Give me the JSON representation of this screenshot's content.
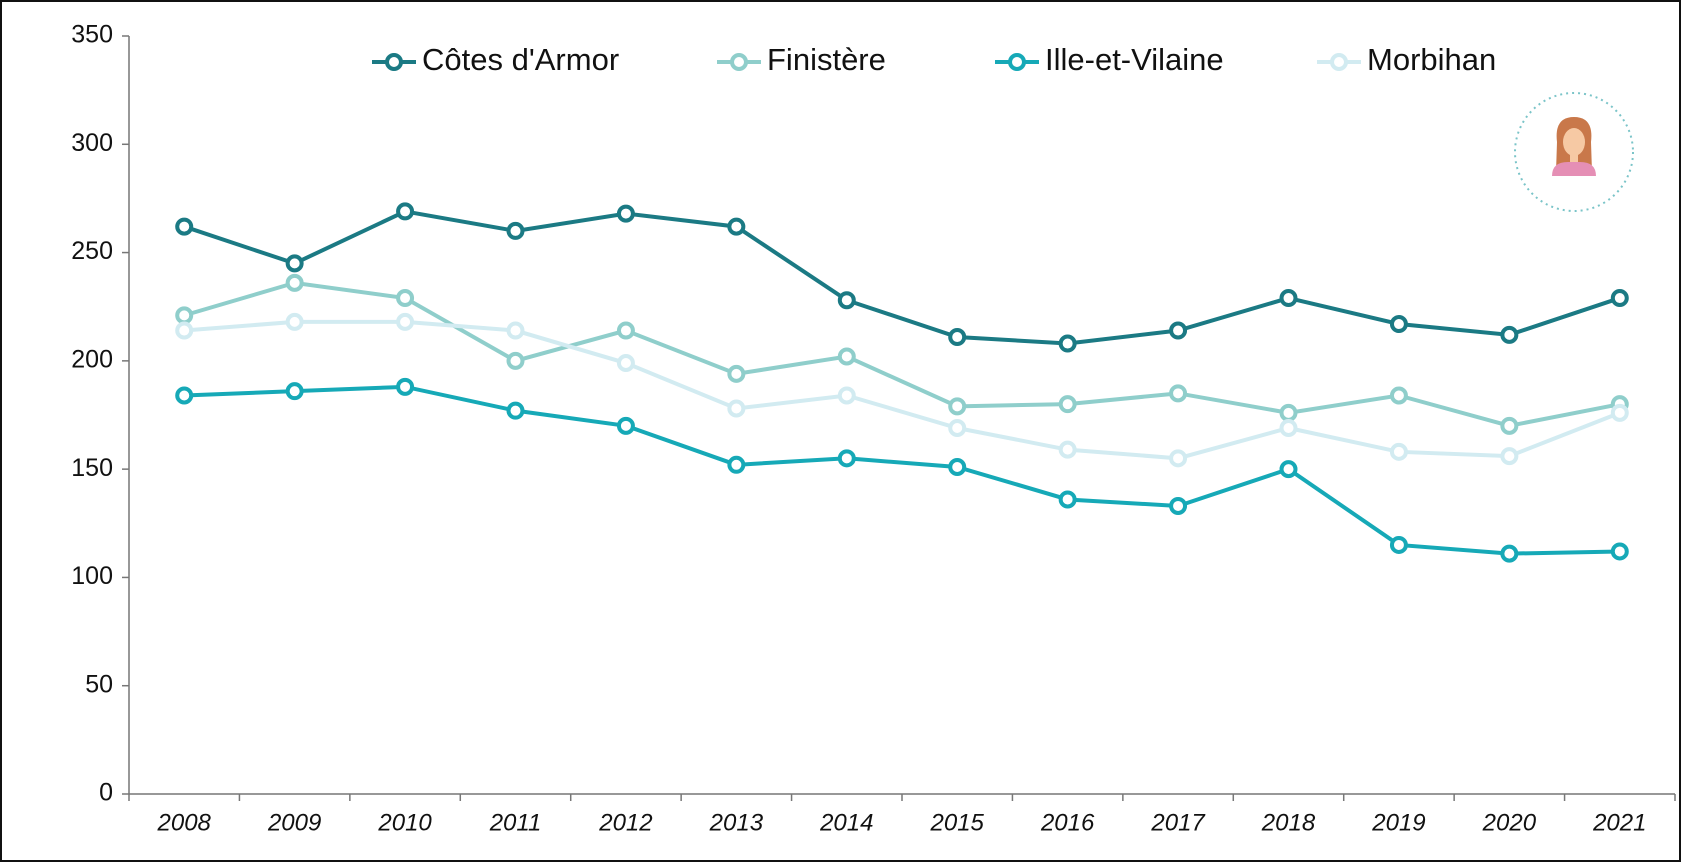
{
  "chart_data": {
    "type": "line",
    "categories": [
      "2008",
      "2009",
      "2010",
      "2011",
      "2012",
      "2013",
      "2014",
      "2015",
      "2016",
      "2017",
      "2018",
      "2019",
      "2020",
      "2021"
    ],
    "series": [
      {
        "name": "Côtes d'Armor",
        "color": "#1b7a84",
        "values": [
          262,
          245,
          269,
          260,
          268,
          262,
          228,
          211,
          208,
          214,
          229,
          217,
          212,
          229
        ]
      },
      {
        "name": "Finistère",
        "color": "#8fcecb",
        "values": [
          221,
          236,
          229,
          200,
          214,
          194,
          202,
          179,
          180,
          185,
          176,
          184,
          170,
          180
        ]
      },
      {
        "name": "Ille-et-Vilaine",
        "color": "#16a9b7",
        "values": [
          184,
          186,
          188,
          177,
          170,
          152,
          155,
          151,
          136,
          133,
          150,
          115,
          111,
          112
        ]
      },
      {
        "name": "Morbihan",
        "color": "#d2ebf1",
        "values": [
          214,
          218,
          218,
          214,
          199,
          178,
          184,
          169,
          159,
          155,
          169,
          158,
          156,
          176
        ]
      }
    ],
    "ylim": [
      0,
      350
    ],
    "yticks": [
      0,
      50,
      100,
      150,
      200,
      250,
      300,
      350
    ],
    "grid": false
  }
}
